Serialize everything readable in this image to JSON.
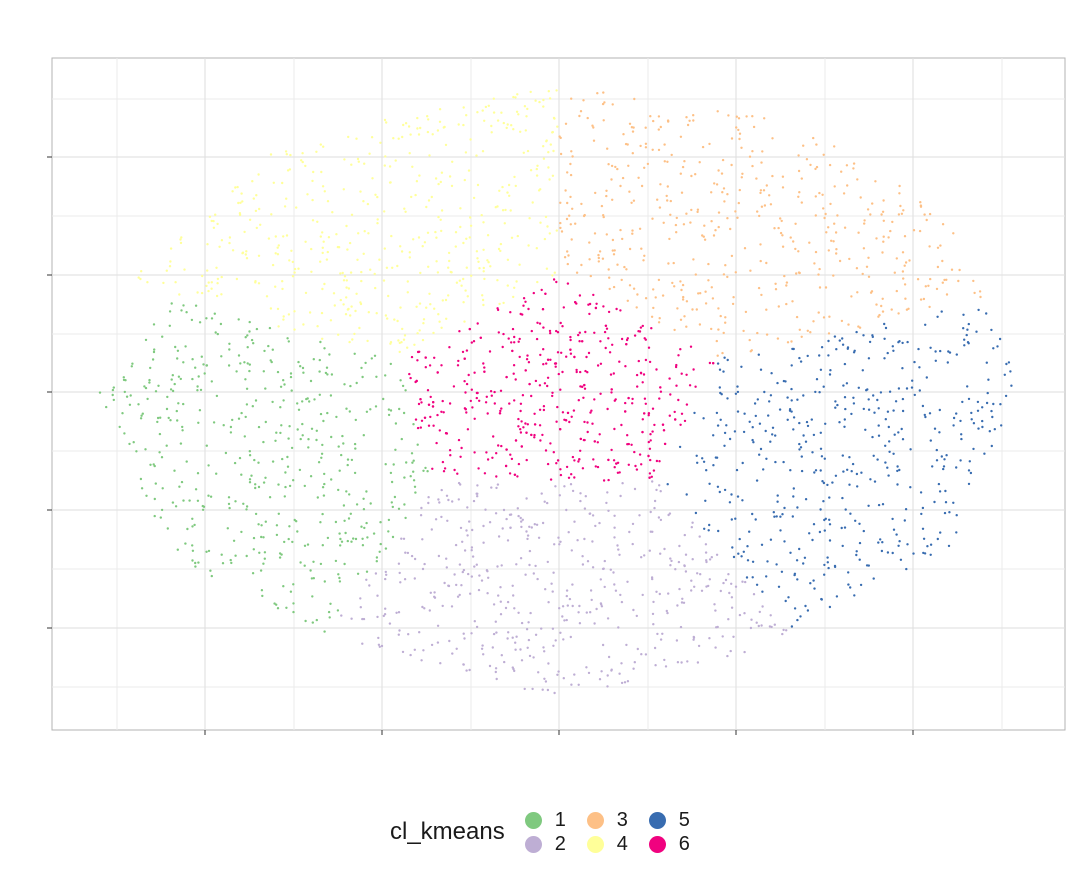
{
  "chart_data": {
    "type": "scatter",
    "title": "",
    "xlabel": "",
    "ylabel": "",
    "grid": true,
    "axis_tick_labels": false,
    "legend_position": "bottom",
    "legend_title": "cl_kmeans",
    "point_size": "small",
    "clusters": [
      {
        "name": "1",
        "color": "#7FC97F",
        "region": "left",
        "polygon": [
          [
            -0.84,
            0.32
          ],
          [
            -1.0,
            0.0
          ],
          [
            -0.84,
            -0.54
          ],
          [
            -0.5,
            -0.79
          ],
          [
            -0.27,
            -0.29
          ],
          [
            -0.35,
            0.1
          ]
        ]
      },
      {
        "name": "2",
        "color": "#BEAED4",
        "region": "bottom",
        "polygon": [
          [
            -0.5,
            -0.79
          ],
          [
            0,
            -1
          ],
          [
            0.4,
            -0.85
          ],
          [
            0.5,
            -0.78
          ],
          [
            0.22,
            -0.29
          ],
          [
            -0.27,
            -0.29
          ]
        ]
      },
      {
        "name": "3",
        "color": "#FDC086",
        "region": "top-right",
        "polygon": [
          [
            0,
            1
          ],
          [
            0.47,
            0.9
          ],
          [
            0.8,
            0.68
          ],
          [
            0.93,
            0.3
          ],
          [
            0.35,
            0.11
          ],
          [
            0.0,
            0.38
          ]
        ]
      },
      {
        "name": "4",
        "color": "#FFFF99",
        "region": "top-left",
        "polygon": [
          [
            -0.94,
            0.35
          ],
          [
            -0.6,
            0.82
          ],
          [
            0,
            1
          ],
          [
            0.0,
            0.38
          ],
          [
            -0.35,
            0.11
          ],
          [
            -0.35,
            0.1
          ]
        ]
      },
      {
        "name": "5",
        "color": "#386CB0",
        "region": "right",
        "polygon": [
          [
            0.93,
            0.3
          ],
          [
            1.0,
            0.0
          ],
          [
            0.85,
            -0.5
          ],
          [
            0.5,
            -0.78
          ],
          [
            0.22,
            -0.29
          ],
          [
            0.35,
            0.11
          ]
        ]
      },
      {
        "name": "6",
        "color": "#F0027F",
        "region": "center",
        "polygon": [
          [
            0.0,
            0.38
          ],
          [
            0.35,
            0.11
          ],
          [
            0.22,
            -0.29
          ],
          [
            -0.27,
            -0.29
          ],
          [
            -0.35,
            0.1
          ]
        ]
      }
    ]
  }
}
